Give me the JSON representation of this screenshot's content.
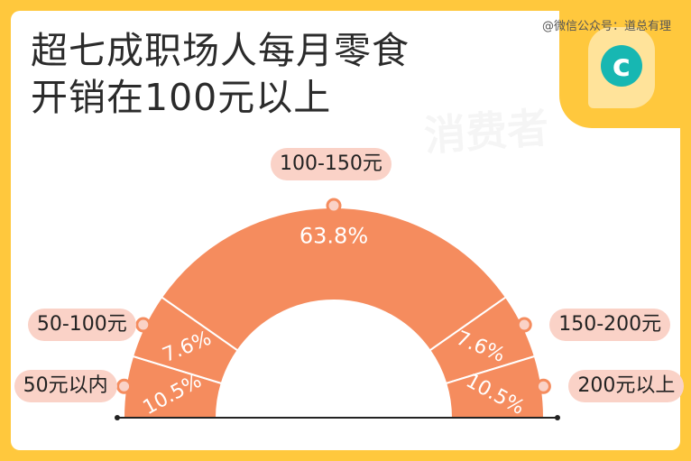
{
  "header": {
    "title_line1": "超七成职场人每月零食",
    "title_line2": "开销在100元以上",
    "source": "@微信公众号：道总有理"
  },
  "logo": {
    "glyph": "c",
    "color": "#17b7b2",
    "icon": "magnifier-c-icon"
  },
  "colors": {
    "background": "#ffc83d",
    "segment": "#f58c5e",
    "pill": "#fad2c7",
    "axis": "#222222"
  },
  "chart_data": {
    "type": "pie",
    "variant": "semicircle-donut",
    "title": "超七成职场人每月零食开销在100元以上",
    "slices": [
      {
        "label": "50元以内",
        "value": 10.5,
        "value_label": "10.5%"
      },
      {
        "label": "50-100元",
        "value": 7.6,
        "value_label": "7.6%"
      },
      {
        "label": "100-150元",
        "value": 63.8,
        "value_label": "63.8%"
      },
      {
        "label": "150-200元",
        "value": 7.6,
        "value_label": "7.6%"
      },
      {
        "label": "200元以上",
        "value": 10.5,
        "value_label": "10.5%"
      }
    ]
  }
}
